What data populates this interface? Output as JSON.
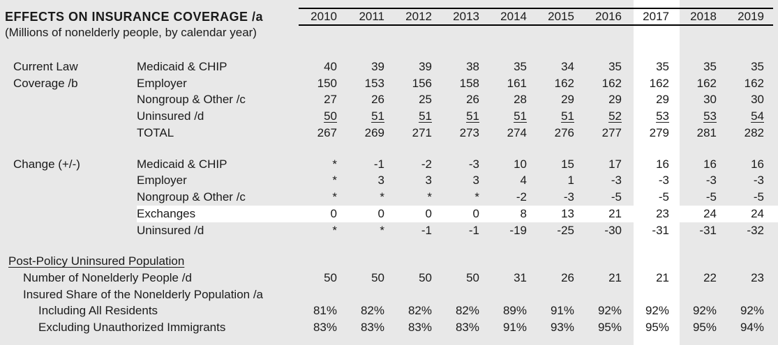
{
  "header": {
    "title": "EFFECTS ON INSURANCE COVERAGE /a",
    "subtitle": "(Millions of nonelderly people, by calendar year)"
  },
  "years": [
    "2010",
    "2011",
    "2012",
    "2013",
    "2014",
    "2015",
    "2016",
    "2017",
    "2018",
    "2019"
  ],
  "highlight": {
    "column_year": "2017",
    "row_label": "Exchanges"
  },
  "colors": {
    "page_bg": "#e8e8e8",
    "highlight_bg": "#ffffff",
    "text": "#1a1a1a",
    "rule": "#000000"
  },
  "sections": [
    {
      "group_lines": [
        "Current Law",
        "Coverage /b"
      ],
      "rows": [
        {
          "label": "Medicaid & CHIP",
          "values": [
            "40",
            "39",
            "39",
            "38",
            "35",
            "34",
            "35",
            "35",
            "35",
            "35"
          ]
        },
        {
          "label": "Employer",
          "values": [
            "150",
            "153",
            "156",
            "158",
            "161",
            "162",
            "162",
            "162",
            "162",
            "162"
          ]
        },
        {
          "label": "Nongroup & Other /c",
          "values": [
            "27",
            "26",
            "25",
            "26",
            "28",
            "29",
            "29",
            "29",
            "30",
            "30"
          ]
        },
        {
          "label": "Uninsured /d",
          "values": [
            "50",
            "51",
            "51",
            "51",
            "51",
            "51",
            "52",
            "53",
            "53",
            "54"
          ]
        },
        {
          "label": "TOTAL",
          "values": [
            "267",
            "269",
            "271",
            "273",
            "274",
            "276",
            "277",
            "279",
            "281",
            "282"
          ]
        }
      ]
    },
    {
      "group_lines": [
        "Change (+/-)"
      ],
      "rows": [
        {
          "label": "Medicaid & CHIP",
          "values": [
            "*",
            "-1",
            "-2",
            "-3",
            "10",
            "15",
            "17",
            "16",
            "16",
            "16"
          ]
        },
        {
          "label": "Employer",
          "values": [
            "*",
            "3",
            "3",
            "3",
            "4",
            "1",
            "-3",
            "-3",
            "-3",
            "-3"
          ]
        },
        {
          "label": "Nongroup & Other /c",
          "values": [
            "*",
            "*",
            "*",
            "*",
            "-2",
            "-3",
            "-5",
            "-5",
            "-5",
            "-5"
          ]
        },
        {
          "label": "Exchanges",
          "values": [
            "0",
            "0",
            "0",
            "0",
            "8",
            "13",
            "21",
            "23",
            "24",
            "24"
          ]
        },
        {
          "label": "Uninsured /d",
          "values": [
            "*",
            "*",
            "-1",
            "-1",
            "-19",
            "-25",
            "-30",
            "-31",
            "-31",
            "-32"
          ]
        }
      ]
    }
  ],
  "post_policy": {
    "heading": "Post-Policy Uninsured Population",
    "rows": [
      {
        "label": "Number of Nonelderly People /d",
        "values": [
          "50",
          "50",
          "50",
          "50",
          "31",
          "26",
          "21",
          "21",
          "22",
          "23"
        ]
      },
      {
        "label": "Insured Share of the Nonelderly Population /a",
        "values": []
      },
      {
        "label": "Including All Residents",
        "values": [
          "81%",
          "82%",
          "82%",
          "82%",
          "89%",
          "91%",
          "92%",
          "92%",
          "92%",
          "92%"
        ]
      },
      {
        "label": "Excluding Unauthorized Immigrants",
        "values": [
          "83%",
          "83%",
          "83%",
          "83%",
          "91%",
          "93%",
          "95%",
          "95%",
          "95%",
          "94%"
        ]
      }
    ]
  },
  "chart_data": {
    "type": "table",
    "title": "EFFECTS ON INSURANCE COVERAGE /a (Millions of nonelderly people, by calendar year)",
    "columns": [
      "2010",
      "2011",
      "2012",
      "2013",
      "2014",
      "2015",
      "2016",
      "2017",
      "2018",
      "2019"
    ],
    "rows": [
      {
        "group": "Current Law Coverage /b",
        "label": "Medicaid & CHIP",
        "values": [
          40,
          39,
          39,
          38,
          35,
          34,
          35,
          35,
          35,
          35
        ]
      },
      {
        "group": "Current Law Coverage /b",
        "label": "Employer",
        "values": [
          150,
          153,
          156,
          158,
          161,
          162,
          162,
          162,
          162,
          162
        ]
      },
      {
        "group": "Current Law Coverage /b",
        "label": "Nongroup & Other /c",
        "values": [
          27,
          26,
          25,
          26,
          28,
          29,
          29,
          29,
          30,
          30
        ]
      },
      {
        "group": "Current Law Coverage /b",
        "label": "Uninsured /d",
        "values": [
          50,
          51,
          51,
          51,
          51,
          51,
          52,
          53,
          53,
          54
        ]
      },
      {
        "group": "Current Law Coverage /b",
        "label": "TOTAL",
        "values": [
          267,
          269,
          271,
          273,
          274,
          276,
          277,
          279,
          281,
          282
        ]
      },
      {
        "group": "Change (+/-)",
        "label": "Medicaid & CHIP",
        "values": [
          "*",
          -1,
          -2,
          -3,
          10,
          15,
          17,
          16,
          16,
          16
        ]
      },
      {
        "group": "Change (+/-)",
        "label": "Employer",
        "values": [
          "*",
          3,
          3,
          3,
          4,
          1,
          -3,
          -3,
          -3,
          -3
        ]
      },
      {
        "group": "Change (+/-)",
        "label": "Nongroup & Other /c",
        "values": [
          "*",
          "*",
          "*",
          "*",
          -2,
          -3,
          -5,
          -5,
          -5,
          -5
        ]
      },
      {
        "group": "Change (+/-)",
        "label": "Exchanges",
        "values": [
          0,
          0,
          0,
          0,
          8,
          13,
          21,
          23,
          24,
          24
        ]
      },
      {
        "group": "Change (+/-)",
        "label": "Uninsured /d",
        "values": [
          "*",
          "*",
          -1,
          -1,
          -19,
          -25,
          -30,
          -31,
          -31,
          -32
        ]
      },
      {
        "group": "Post-Policy Uninsured Population",
        "label": "Number of Nonelderly People /d",
        "values": [
          50,
          50,
          50,
          50,
          31,
          26,
          21,
          21,
          22,
          23
        ]
      },
      {
        "group": "Post-Policy Uninsured Population",
        "label": "Insured Share of the Nonelderly Population /a - Including All Residents",
        "values": [
          "81%",
          "82%",
          "82%",
          "82%",
          "89%",
          "91%",
          "92%",
          "92%",
          "92%",
          "92%"
        ]
      },
      {
        "group": "Post-Policy Uninsured Population",
        "label": "Insured Share of the Nonelderly Population /a - Excluding Unauthorized Immigrants",
        "values": [
          "83%",
          "83%",
          "83%",
          "83%",
          "91%",
          "93%",
          "95%",
          "95%",
          "95%",
          "94%"
        ]
      }
    ],
    "layout_hints": {
      "highlighted_column": "2017",
      "highlighted_row": "Exchanges",
      "grid": false
    }
  }
}
